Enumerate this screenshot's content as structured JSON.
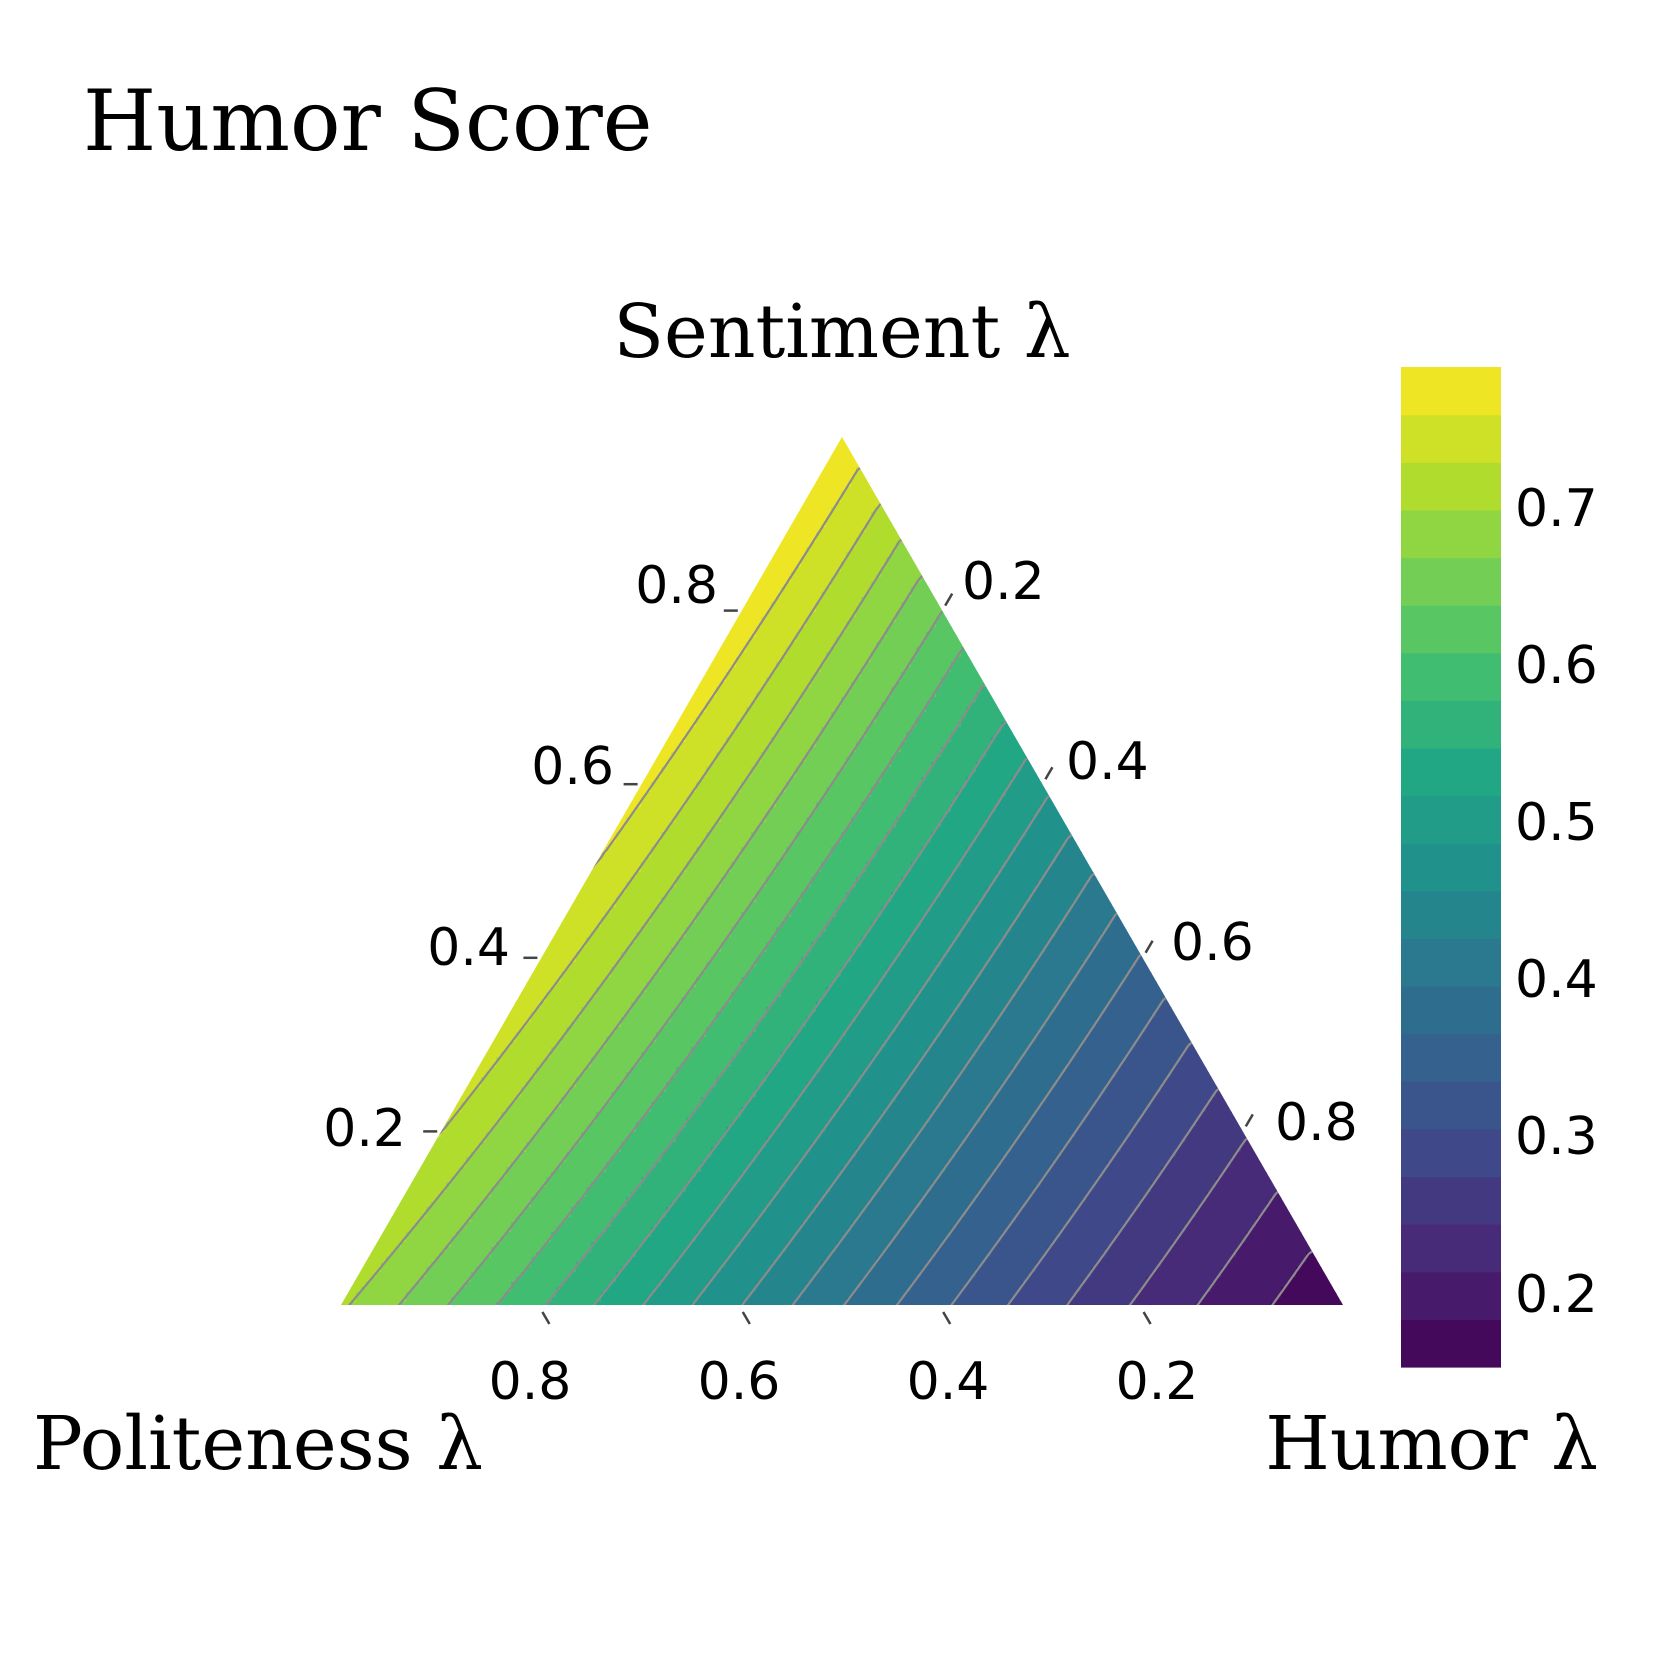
{
  "chart_data": {
    "type": "ternary-contour",
    "title": "Humor Score",
    "axes": {
      "top": {
        "label": "Sentiment λ",
        "ticks": [
          "0.2",
          "0.4",
          "0.6",
          "0.8"
        ]
      },
      "right": {
        "label": "Humor λ",
        "ticks": [
          "0.2",
          "0.4",
          "0.6",
          "0.8"
        ]
      },
      "left": {
        "label": "Politeness λ",
        "ticks": [
          "0.2",
          "0.4",
          "0.6",
          "0.8"
        ]
      }
    },
    "colorbar": {
      "colormap": "viridis",
      "range": [
        0.155,
        0.785
      ],
      "ticks": [
        "0.2",
        "0.3",
        "0.4",
        "0.5",
        "0.6",
        "0.7"
      ],
      "tick_values": [
        0.2,
        0.3,
        0.4,
        0.5,
        0.6,
        0.7
      ],
      "levels": 21
    },
    "corner_values": {
      "sentiment": 0.78,
      "humor": 0.16,
      "politeness": 0.7
    },
    "contour_color": "#8c8c8c",
    "grid": false
  }
}
